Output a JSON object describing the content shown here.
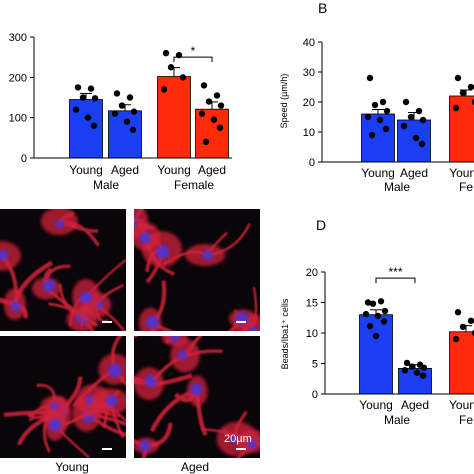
{
  "colors": {
    "blue": "#1a3ff2",
    "red": "#ff2a0a",
    "black": "#000000",
    "micro_bg": "#0a0508",
    "micro_red": "#d2203a",
    "micro_blue": "#4a36d8"
  },
  "panels": {
    "B": {
      "letter": "B"
    },
    "C": {
      "column_labels": [
        "Young",
        "Aged"
      ],
      "scale_label": "20µm"
    },
    "D": {
      "letter": "D"
    }
  },
  "chart_data": [
    {
      "id": "A",
      "type": "bar",
      "ylabel": "",
      "ylim": [
        0,
        300
      ],
      "yticks": [
        0,
        100,
        200,
        300
      ],
      "categories": [
        "Young",
        "Aged",
        "Young",
        "Aged"
      ],
      "groups": [
        "Male",
        "Female"
      ],
      "values": [
        145,
        117,
        202,
        121
      ],
      "errors": [
        15,
        15,
        22,
        18
      ],
      "bar_colors": [
        "blue",
        "blue",
        "red",
        "red"
      ],
      "points": [
        [
          175,
          172,
          150,
          148,
          120,
          100,
          80
        ],
        [
          160,
          150,
          130,
          115,
          110,
          90,
          70
        ],
        [
          260,
          255,
          225,
          200,
          170
        ],
        [
          180,
          155,
          140,
          130,
          110,
          95,
          75,
          40
        ]
      ],
      "significance": [
        {
          "between": [
            2,
            3
          ],
          "label": "*",
          "y": 250
        }
      ]
    },
    {
      "id": "B",
      "type": "bar",
      "ylabel": "Speed (µm/h)",
      "ylim": [
        0,
        40
      ],
      "yticks": [
        0,
        10,
        20,
        30,
        40
      ],
      "categories": [
        "Young",
        "Aged",
        "Young"
      ],
      "cut_labels": [
        "",
        "",
        "Fe"
      ],
      "groups": [
        "Male"
      ],
      "values": [
        16,
        14,
        22
      ],
      "errors": [
        1.5,
        2.5,
        2
      ],
      "bar_colors": [
        "blue",
        "blue",
        "red"
      ],
      "points": [
        [
          28,
          20,
          19,
          17,
          15,
          14,
          11,
          9
        ],
        [
          20,
          17,
          15,
          14,
          12,
          8,
          6
        ],
        [
          28,
          25,
          23,
          20,
          18
        ]
      ],
      "significance": []
    },
    {
      "id": "D",
      "type": "bar",
      "ylabel": "Beads/Iba1⁺ cells",
      "ylim": [
        0,
        20
      ],
      "yticks": [
        0,
        5,
        10,
        15,
        20
      ],
      "categories": [
        "Young",
        "Aged",
        "Youn"
      ],
      "cut_labels": [
        "",
        "",
        "Fe"
      ],
      "groups": [
        "Male"
      ],
      "values": [
        13,
        4.2,
        10.2
      ],
      "errors": [
        0.8,
        0.6,
        1.0
      ],
      "bar_colors": [
        "blue",
        "blue",
        "red"
      ],
      "points": [
        [
          15,
          15.2,
          14.8,
          13.6,
          13.1,
          12.8,
          11.9,
          11.1,
          9.5
        ],
        [
          5.1,
          4.8,
          4.5,
          4.3,
          3.9,
          3.5,
          3.0
        ],
        [
          13.4,
          12,
          11,
          10,
          9
        ]
      ],
      "significance": [
        {
          "between": [
            0,
            1
          ],
          "label": "***",
          "y": 19
        }
      ]
    }
  ]
}
